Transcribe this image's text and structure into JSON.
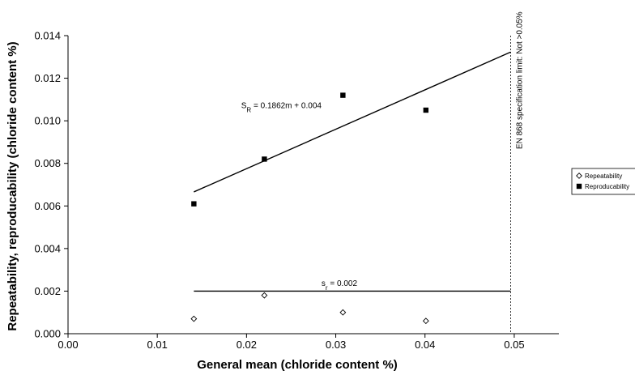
{
  "chart_data": {
    "type": "scatter",
    "xlabel": "General mean (chloride content %)",
    "ylabel": "Repeatability, reproducability (chloride content %)",
    "xlim": [
      0,
      0.055
    ],
    "ylim": [
      0,
      0.014
    ],
    "x_ticks": [
      "0.00",
      "0.01",
      "0.02",
      "0.03",
      "0.04",
      "0.05"
    ],
    "y_ticks": [
      "0.000",
      "0.002",
      "0.004",
      "0.006",
      "0.008",
      "0.010",
      "0.012",
      "0.014"
    ],
    "grid": false,
    "legend_position": "right",
    "series": [
      {
        "name": "Repeatability",
        "marker": "diamond-open",
        "color": "#000000",
        "points": [
          {
            "x": 0.0141,
            "y": 0.0007
          },
          {
            "x": 0.022,
            "y": 0.0018
          },
          {
            "x": 0.0308,
            "y": 0.001
          },
          {
            "x": 0.0401,
            "y": 0.0006
          }
        ]
      },
      {
        "name": "Reproducability",
        "marker": "square-filled",
        "color": "#000000",
        "points": [
          {
            "x": 0.0141,
            "y": 0.0061
          },
          {
            "x": 0.022,
            "y": 0.0082
          },
          {
            "x": 0.0308,
            "y": 0.0112
          },
          {
            "x": 0.0401,
            "y": 0.0105
          }
        ]
      }
    ],
    "fit_lines": [
      {
        "from": [
          0.0141,
          0.00666
        ],
        "to": [
          0.0496,
          0.01323
        ],
        "label_main": "S",
        "label_sub": "R",
        "label_rest": " = 0.1862m + 0.004",
        "label_at": [
          0.0194,
          0.0106
        ]
      },
      {
        "from": [
          0.0141,
          0.002
        ],
        "to": [
          0.0496,
          0.002
        ],
        "label_main": "s",
        "label_sub": "r",
        "label_rest": " = 0.002",
        "label_at": [
          0.0284,
          0.00225
        ]
      }
    ],
    "limit_line": {
      "x": 0.0496,
      "label": "EN 868 specification limit: Not >0.05%"
    }
  }
}
